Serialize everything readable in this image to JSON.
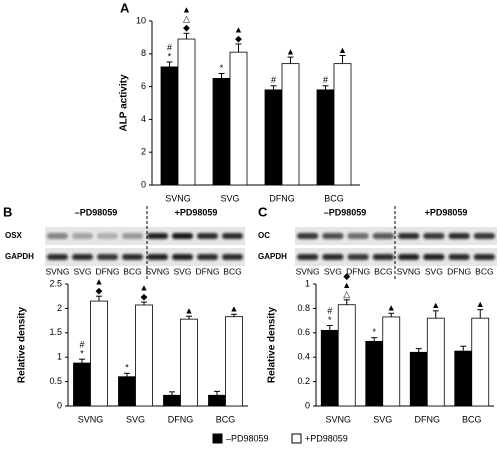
{
  "chart_data": [
    {
      "type": "bar",
      "panel": "A",
      "ylabel": "ALP activity",
      "categories": [
        "SVNG",
        "SVG",
        "DFNG",
        "BCG"
      ],
      "series": [
        {
          "name": "–PD98059",
          "color": "#000000",
          "values": [
            7.2,
            6.5,
            5.8,
            5.8
          ],
          "errors": [
            0.3,
            0.3,
            0.25,
            0.25
          ],
          "annotations": [
            [
              "#",
              "*"
            ],
            [
              "*"
            ],
            [
              "#"
            ],
            [
              "#"
            ]
          ]
        },
        {
          "name": "+PD98059",
          "color": "#ffffff",
          "values": [
            8.9,
            8.1,
            7.4,
            7.4
          ],
          "errors": [
            0.35,
            0.5,
            0.4,
            0.5
          ],
          "annotations": [
            [
              "▲",
              "△",
              "◆"
            ],
            [
              "▲",
              "◆"
            ],
            [
              "▲"
            ],
            [
              "▲"
            ]
          ]
        }
      ],
      "ylim": [
        0,
        10
      ],
      "yticks": [
        0,
        2,
        4,
        6,
        8,
        10
      ]
    },
    {
      "type": "bar",
      "ylabel": "Relative density",
      "categories": [
        "SVNG",
        "SVG",
        "DFNG",
        "BCG"
      ],
      "series": [
        {
          "name": "–PD98059",
          "color": "#000000",
          "values": [
            0.88,
            0.6,
            0.22,
            0.22
          ],
          "errors": [
            0.08,
            0.07,
            0.07,
            0.08
          ],
          "annotations": [
            [
              "#",
              "*"
            ],
            [
              "*"
            ],
            [],
            []
          ]
        },
        {
          "name": "+PD98059",
          "color": "#ffffff",
          "values": [
            2.15,
            2.07,
            1.78,
            1.83
          ],
          "errors": [
            0.1,
            0.06,
            0.06,
            0.05
          ],
          "annotations": [
            [
              "▲",
              "◆"
            ],
            [
              "▲",
              "◆"
            ],
            [
              "▲"
            ],
            [
              "▲"
            ]
          ]
        }
      ],
      "ylim": [
        0,
        2.5
      ],
      "yticks": [
        0,
        0.5,
        1,
        1.5,
        2,
        2.5
      ]
    },
    {
      "type": "bar",
      "ylabel": "Relative density",
      "categories": [
        "SVNG",
        "SVG",
        "DFNG",
        "BCG"
      ],
      "series": [
        {
          "name": "–PD98059",
          "color": "#000000",
          "values": [
            0.62,
            0.53,
            0.44,
            0.45
          ],
          "errors": [
            0.04,
            0.03,
            0.03,
            0.04
          ],
          "annotations": [
            [
              "#",
              "*"
            ],
            [
              "*"
            ],
            [],
            []
          ]
        },
        {
          "name": "+PD98059",
          "color": "#ffffff",
          "values": [
            0.83,
            0.73,
            0.72,
            0.72
          ],
          "errors": [
            0.04,
            0.03,
            0.06,
            0.07
          ],
          "annotations": [
            [
              "◆",
              "▲",
              "△"
            ],
            [
              "▲"
            ],
            [
              "▲"
            ],
            [
              "▲"
            ]
          ]
        }
      ],
      "ylim": [
        0,
        1
      ],
      "yticks": [
        0,
        0.2,
        0.4,
        0.6,
        0.8,
        1
      ]
    }
  ],
  "blots": [
    {
      "panel": "B",
      "groups": [
        "–PD98059",
        "+PD98059"
      ],
      "rows": [
        "OSX",
        "GAPDH"
      ],
      "lanes": [
        "SVNG",
        "SVG",
        "DFNG",
        "BCG",
        "SVNG",
        "SVG",
        "DFNG",
        "BCG"
      ]
    },
    {
      "panel": "C",
      "groups": [
        "–PD98059",
        "+PD98059"
      ],
      "rows": [
        "OC",
        "GAPDH"
      ],
      "lanes": [
        "SVNG",
        "SVG",
        "DFNG",
        "BCG",
        "SVNG",
        "SVG",
        "DFNG",
        "BCG"
      ]
    }
  ]
}
